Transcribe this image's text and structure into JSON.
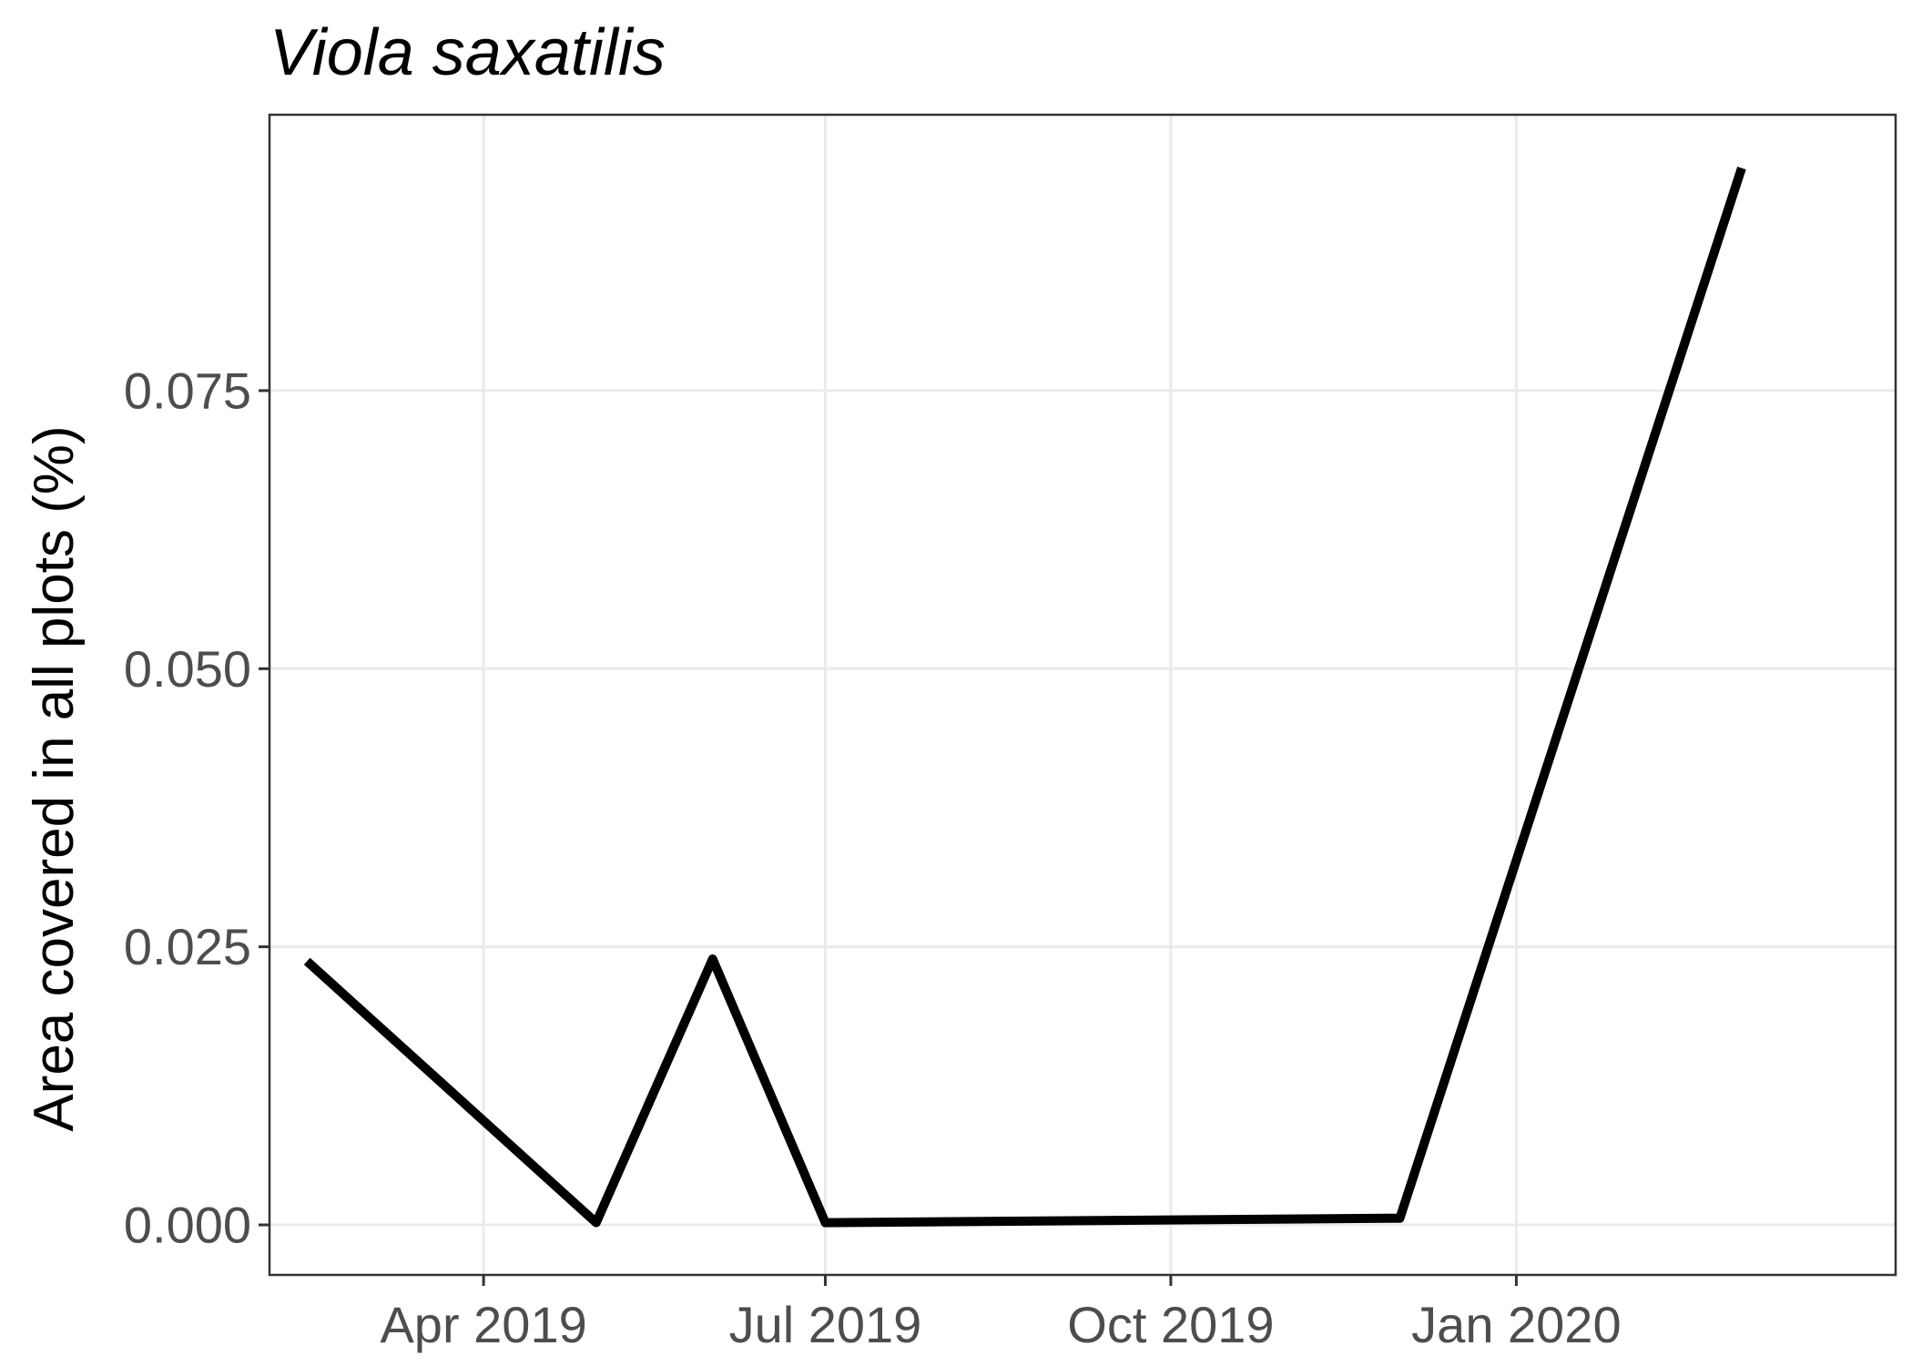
{
  "chart_data": {
    "type": "line",
    "title": "Viola saxatilis",
    "xlabel": "",
    "ylabel": "Area covered in all plots (%)",
    "x_type": "date",
    "x_ticks": [
      {
        "label": "Apr 2019",
        "date": "2019-04-01"
      },
      {
        "label": "Jul 2019",
        "date": "2019-07-01"
      },
      {
        "label": "Oct 2019",
        "date": "2019-10-01"
      },
      {
        "label": "Jan 2020",
        "date": "2020-01-01"
      }
    ],
    "y_ticks": [
      {
        "label": "0.000",
        "value": 0.0
      },
      {
        "label": "0.025",
        "value": 0.025
      },
      {
        "label": "0.050",
        "value": 0.05
      },
      {
        "label": "0.075",
        "value": 0.075
      }
    ],
    "xlim": [
      "2019-02-03",
      "2020-04-11"
    ],
    "ylim": [
      -0.0045,
      0.0998
    ],
    "grid": true,
    "color": "#000000",
    "series": [
      {
        "points": [
          {
            "x": "2019-02-13",
            "y": 0.0237
          },
          {
            "x": "2019-05-01",
            "y": 0.0002
          },
          {
            "x": "2019-06-01",
            "y": 0.0239
          },
          {
            "x": "2019-07-01",
            "y": 0.0002
          },
          {
            "x": "2019-12-01",
            "y": 0.0006
          },
          {
            "x": "2020-03-01",
            "y": 0.095
          }
        ]
      }
    ]
  }
}
